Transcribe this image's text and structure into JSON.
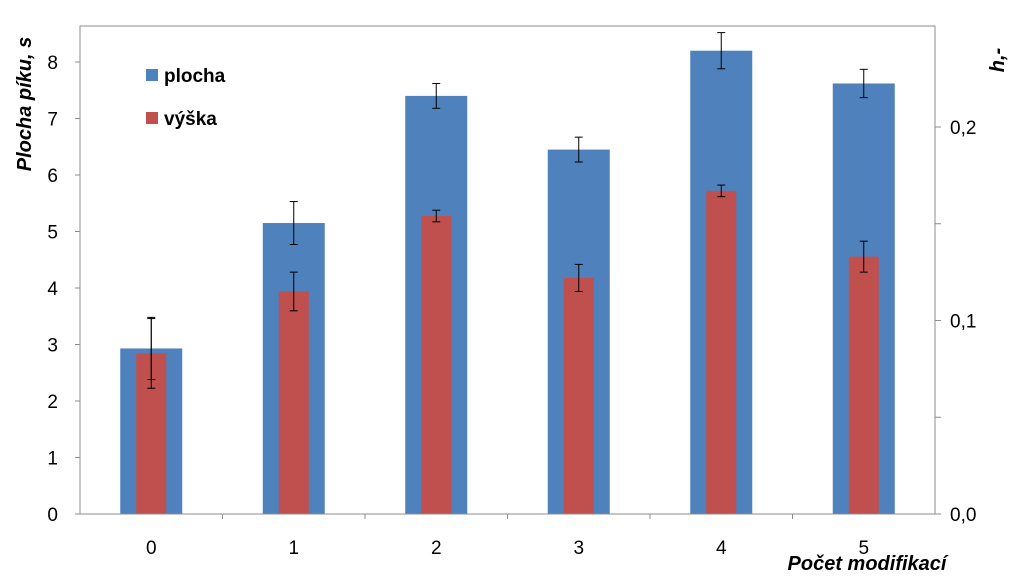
{
  "chart_data": {
    "type": "bar",
    "categories": [
      "0",
      "1",
      "2",
      "3",
      "4",
      "5"
    ],
    "xlabel": "Počet modifikací",
    "ylabel_left": "Plocha píku, s",
    "ylabel_right": "h,-",
    "ylim_left": [
      0,
      8
    ],
    "ylim_right": [
      0.0,
      0.2
    ],
    "yticks_left": [
      "0",
      "1",
      "2",
      "3",
      "4",
      "5",
      "6",
      "7",
      "8"
    ],
    "yticks_right": [
      "0,0",
      "0,1",
      "0,2"
    ],
    "legend_position": "top-left",
    "series": [
      {
        "name": "plocha",
        "axis": "left",
        "color": "#4f81bd",
        "values": [
          2.93,
          5.15,
          7.4,
          6.45,
          8.2,
          7.62
        ],
        "errors": [
          0.55,
          0.38,
          0.22,
          0.22,
          0.32,
          0.25
        ]
      },
      {
        "name": "výška",
        "axis": "right",
        "color": "#c0504d",
        "values": [
          0.083,
          0.115,
          0.154,
          0.122,
          0.167,
          0.133
        ],
        "errors": [
          0.018,
          0.01,
          0.003,
          0.007,
          0.003,
          0.008
        ]
      }
    ]
  }
}
